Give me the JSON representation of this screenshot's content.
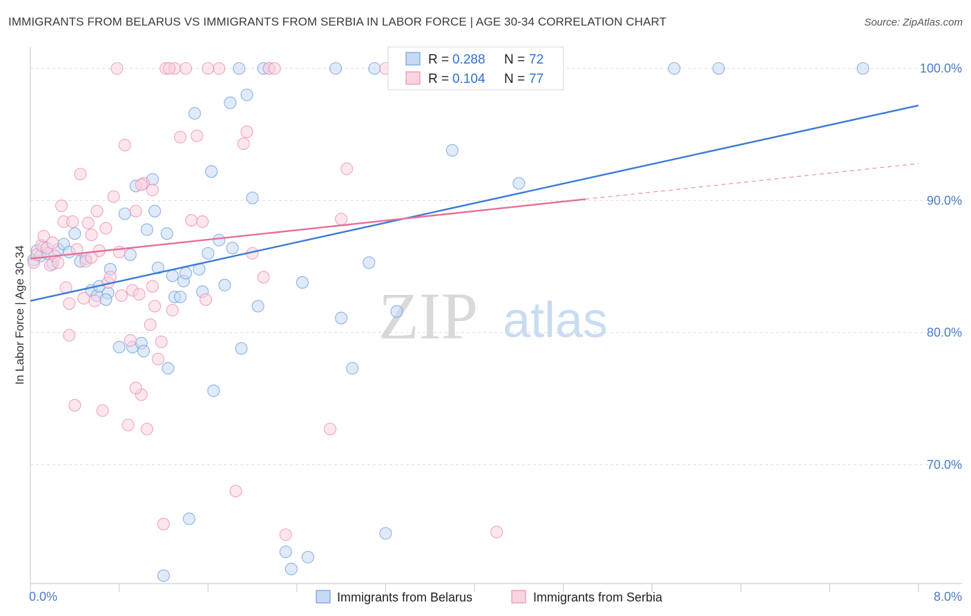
{
  "title": "IMMIGRANTS FROM BELARUS VS IMMIGRANTS FROM SERBIA IN LABOR FORCE | AGE 30-34 CORRELATION CHART",
  "source": "Source: ZipAtlas.com",
  "watermark": {
    "zip": "ZIP",
    "atlas": "atlas"
  },
  "legend": {
    "r_label": "R = ",
    "n_label": "N = ",
    "items": [
      {
        "name": "Immigrants from Belarus",
        "r": "0.288",
        "n": "72",
        "color": "#6fa0e0",
        "fill": "#c7d9f3"
      },
      {
        "name": "Immigrants from Serbia",
        "r": "0.104",
        "n": "77",
        "color": "#ee8fb0",
        "fill": "#f9d3e0"
      }
    ]
  },
  "chart_data": {
    "type": "scatter",
    "title": "IMMIGRANTS FROM BELARUS VS IMMIGRANTS FROM SERBIA IN LABOR FORCE | AGE 30-34 CORRELATION CHART",
    "xlabel": "",
    "ylabel": "In Labor Force | Age 30-34",
    "xlim": [
      0,
      8
    ],
    "ylim": [
      61,
      101
    ],
    "x_tick_labels": [
      "0.0%",
      "8.0%"
    ],
    "y_ticks": [
      70,
      80,
      90,
      100
    ],
    "y_tick_labels": [
      "70.0%",
      "80.0%",
      "90.0%",
      "100.0%"
    ],
    "grid": true,
    "series": [
      {
        "name": "Immigrants from Belarus",
        "color": "#3a7bd5",
        "trend": {
          "x0": 0,
          "y0": 82.4,
          "x1": 8,
          "y1": 97.2,
          "dash_from": null
        },
        "points": [
          [
            0.03,
            85.5
          ],
          [
            0.06,
            86.2
          ],
          [
            0.09,
            85.8
          ],
          [
            0.12,
            86.5
          ],
          [
            0.15,
            86.0
          ],
          [
            0.2,
            85.2
          ],
          [
            0.25,
            86.3
          ],
          [
            0.3,
            86.7
          ],
          [
            0.35,
            86.1
          ],
          [
            0.4,
            87.5
          ],
          [
            0.45,
            85.4
          ],
          [
            0.5,
            85.6
          ],
          [
            0.55,
            83.2
          ],
          [
            0.6,
            82.8
          ],
          [
            0.62,
            83.5
          ],
          [
            0.7,
            83.0
          ],
          [
            0.8,
            78.9
          ],
          [
            0.85,
            89.0
          ],
          [
            0.9,
            85.9
          ],
          [
            0.92,
            78.9
          ],
          [
            0.95,
            91.1
          ],
          [
            1.0,
            79.2
          ],
          [
            1.02,
            78.6
          ],
          [
            1.05,
            87.8
          ],
          [
            1.1,
            91.6
          ],
          [
            1.12,
            89.2
          ],
          [
            1.15,
            84.9
          ],
          [
            1.2,
            61.6
          ],
          [
            1.23,
            87.5
          ],
          [
            1.24,
            77.3
          ],
          [
            1.3,
            82.7
          ],
          [
            1.35,
            82.7
          ],
          [
            1.38,
            83.9
          ],
          [
            1.4,
            84.5
          ],
          [
            1.43,
            65.9
          ],
          [
            1.48,
            96.6
          ],
          [
            1.52,
            84.8
          ],
          [
            1.55,
            83.1
          ],
          [
            1.6,
            86.0
          ],
          [
            1.63,
            92.2
          ],
          [
            1.65,
            75.6
          ],
          [
            1.7,
            87.0
          ],
          [
            1.75,
            83.6
          ],
          [
            1.8,
            97.4
          ],
          [
            1.88,
            100.0
          ],
          [
            1.9,
            78.8
          ],
          [
            1.95,
            98.0
          ],
          [
            2.0,
            90.2
          ],
          [
            2.05,
            82.0
          ],
          [
            2.1,
            100.0
          ],
          [
            2.15,
            100.0
          ],
          [
            2.3,
            63.4
          ],
          [
            2.35,
            62.1
          ],
          [
            2.45,
            83.8
          ],
          [
            2.5,
            63.0
          ],
          [
            2.75,
            100.0
          ],
          [
            2.8,
            81.1
          ],
          [
            2.9,
            77.3
          ],
          [
            3.05,
            85.3
          ],
          [
            3.1,
            100.0
          ],
          [
            3.3,
            81.6
          ],
          [
            3.5,
            100.0
          ],
          [
            3.8,
            93.8
          ],
          [
            4.4,
            91.3
          ],
          [
            5.8,
            100.0
          ],
          [
            6.2,
            100.0
          ],
          [
            7.5,
            100.0
          ],
          [
            3.2,
            64.8
          ],
          [
            0.72,
            84.8
          ],
          [
            1.28,
            84.3
          ],
          [
            1.82,
            86.4
          ],
          [
            0.68,
            82.5
          ]
        ]
      },
      {
        "name": "Immigrants from Serbia",
        "color": "#e76f9a",
        "trend": {
          "x0": 0,
          "y0": 85.6,
          "x1": 8,
          "y1": 92.8,
          "dash_from": 5.0
        },
        "points": [
          [
            0.03,
            85.3
          ],
          [
            0.06,
            85.9
          ],
          [
            0.1,
            86.6
          ],
          [
            0.12,
            87.3
          ],
          [
            0.15,
            86.4
          ],
          [
            0.18,
            85.1
          ],
          [
            0.2,
            86.8
          ],
          [
            0.22,
            85.8
          ],
          [
            0.25,
            85.3
          ],
          [
            0.28,
            89.6
          ],
          [
            0.3,
            88.4
          ],
          [
            0.32,
            83.4
          ],
          [
            0.35,
            82.2
          ],
          [
            0.38,
            88.4
          ],
          [
            0.42,
            86.3
          ],
          [
            0.45,
            92.0
          ],
          [
            0.5,
            85.4
          ],
          [
            0.52,
            88.3
          ],
          [
            0.55,
            87.4
          ],
          [
            0.58,
            82.4
          ],
          [
            0.6,
            89.2
          ],
          [
            0.62,
            86.2
          ],
          [
            0.65,
            74.1
          ],
          [
            0.68,
            87.9
          ],
          [
            0.7,
            83.8
          ],
          [
            0.72,
            84.2
          ],
          [
            0.75,
            90.3
          ],
          [
            0.8,
            86.1
          ],
          [
            0.82,
            82.8
          ],
          [
            0.85,
            94.2
          ],
          [
            0.88,
            73.0
          ],
          [
            0.9,
            79.4
          ],
          [
            0.92,
            83.2
          ],
          [
            0.95,
            89.2
          ],
          [
            0.98,
            82.9
          ],
          [
            1.0,
            75.3
          ],
          [
            1.02,
            91.3
          ],
          [
            1.05,
            72.7
          ],
          [
            1.08,
            80.6
          ],
          [
            1.1,
            90.8
          ],
          [
            1.12,
            82.0
          ],
          [
            1.15,
            78.0
          ],
          [
            1.18,
            79.3
          ],
          [
            1.2,
            65.5
          ],
          [
            1.22,
            100.0
          ],
          [
            1.28,
            81.7
          ],
          [
            1.3,
            100.0
          ],
          [
            1.35,
            94.8
          ],
          [
            1.4,
            100.0
          ],
          [
            1.45,
            88.5
          ],
          [
            1.5,
            94.9
          ],
          [
            1.55,
            88.4
          ],
          [
            1.58,
            82.5
          ],
          [
            1.7,
            100.0
          ],
          [
            1.85,
            68.0
          ],
          [
            1.92,
            94.3
          ],
          [
            1.95,
            95.2
          ],
          [
            2.0,
            86.0
          ],
          [
            2.1,
            84.2
          ],
          [
            2.15,
            100.0
          ],
          [
            2.2,
            100.0
          ],
          [
            2.7,
            72.7
          ],
          [
            2.8,
            88.6
          ],
          [
            2.85,
            92.4
          ],
          [
            3.2,
            100.0
          ],
          [
            4.2,
            64.9
          ],
          [
            1.0,
            91.2
          ],
          [
            0.48,
            82.6
          ],
          [
            0.78,
            100.0
          ],
          [
            1.25,
            100.0
          ],
          [
            0.55,
            85.7
          ],
          [
            1.6,
            100.0
          ],
          [
            0.4,
            74.5
          ],
          [
            0.95,
            75.8
          ],
          [
            2.3,
            64.7
          ],
          [
            1.1,
            83.5
          ],
          [
            0.35,
            79.8
          ]
        ]
      }
    ]
  }
}
